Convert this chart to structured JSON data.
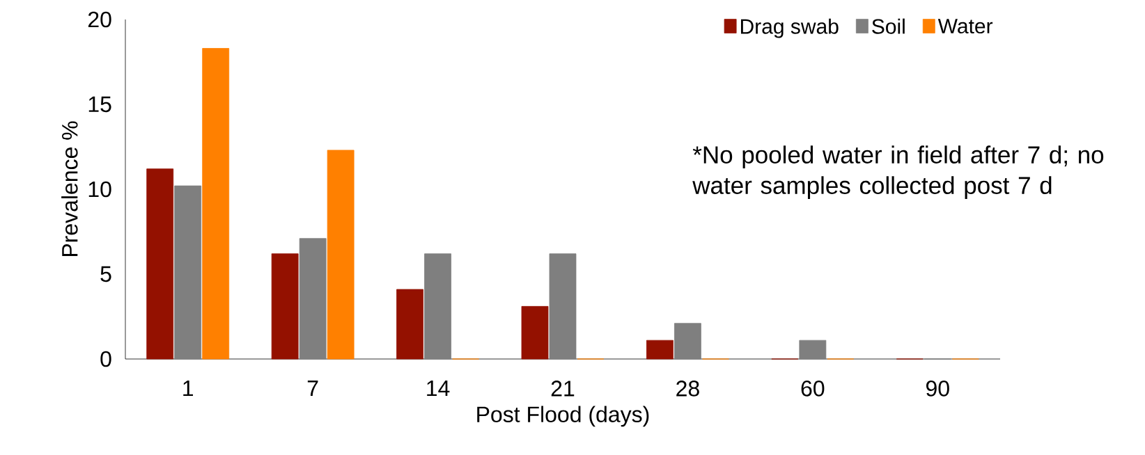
{
  "chart_data": {
    "type": "bar",
    "xlabel": "Post Flood (days)",
    "ylabel": "Prevalence %",
    "categories": [
      "1",
      "7",
      "14",
      "21",
      "28",
      "60",
      "90"
    ],
    "series": [
      {
        "name": "Drag swab",
        "color": "#941100",
        "values": [
          11.2,
          6.2,
          4.1,
          3.1,
          1.1,
          0,
          0
        ]
      },
      {
        "name": "Soil",
        "color": "#7f7f7f",
        "values": [
          10.2,
          7.1,
          6.2,
          6.2,
          2.1,
          1.1,
          0
        ]
      },
      {
        "name": "Water",
        "color": "#ff8000",
        "values": [
          18.3,
          12.3,
          0,
          0,
          0,
          0,
          0
        ]
      }
    ],
    "ylim": [
      0,
      20
    ],
    "yticks": [
      0,
      5,
      10,
      15,
      20
    ],
    "grid": false,
    "legend": "top right",
    "annotations": [
      "*No pooled water in field after 7 d; no water samples collected post 7 d"
    ]
  }
}
